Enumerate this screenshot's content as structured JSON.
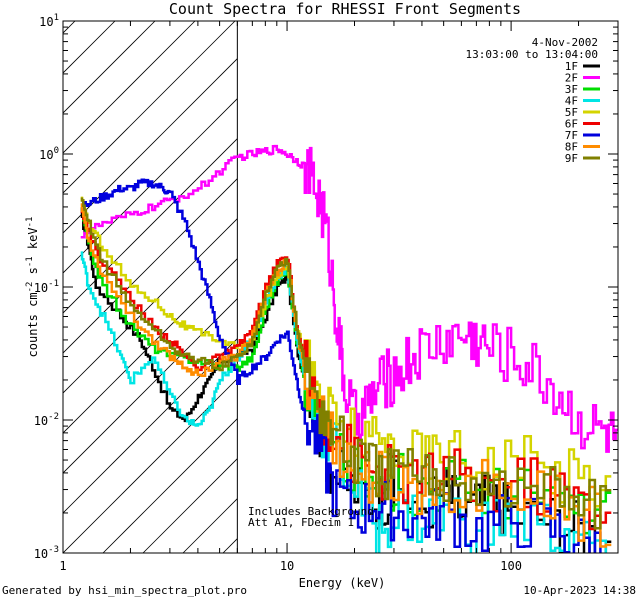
{
  "chart_data": {
    "type": "line",
    "title": "Count Spectra for RHESSI Front Segments",
    "xlabel": "Energy (keV)",
    "ylabel_parts": {
      "base": "counts cm",
      "exp1": "-2",
      "s": " s",
      "exp2": "-1",
      "kev": " keV",
      "exp3": "-1"
    },
    "xscale": "log",
    "yscale": "log",
    "xlim": [
      1,
      300
    ],
    "ylim": [
      0.001,
      10
    ],
    "x_ticks": [
      {
        "value": 1,
        "label": "1"
      },
      {
        "value": 10,
        "label": "10"
      },
      {
        "value": 100,
        "label": "100"
      }
    ],
    "y_ticks": [
      {
        "value": 0.001,
        "base": "10",
        "exp": "-3"
      },
      {
        "value": 0.01,
        "base": "10",
        "exp": "-2"
      },
      {
        "value": 0.1,
        "base": "10",
        "exp": "-1"
      },
      {
        "value": 1,
        "base": "10",
        "exp": "0"
      },
      {
        "value": 10,
        "base": "10",
        "exp": "1"
      }
    ],
    "attenuator_region_keV": [
      1,
      6
    ],
    "date_label": "4-Nov-2002",
    "time_range": "13:03:00 to 13:04:00",
    "annotation_lines": [
      "Includes Background",
      "Att A1, FDecim 1"
    ],
    "series": [
      {
        "name": "1F",
        "color": "#000000",
        "values": [
          [
            1.2,
            0.35
          ],
          [
            1.3,
            0.2
          ],
          [
            1.4,
            0.1
          ],
          [
            1.8,
            0.06
          ],
          [
            2.2,
            0.04
          ],
          [
            2.5,
            0.025
          ],
          [
            3,
            0.012
          ],
          [
            3.5,
            0.01
          ],
          [
            4,
            0.015
          ],
          [
            4.5,
            0.02
          ],
          [
            5,
            0.028
          ],
          [
            6,
            0.03
          ],
          [
            7,
            0.035
          ],
          [
            8,
            0.06
          ],
          [
            9,
            0.1
          ],
          [
            10,
            0.12
          ],
          [
            11,
            0.035
          ],
          [
            12,
            0.02
          ],
          [
            14,
            0.008
          ],
          [
            16,
            0.004
          ],
          [
            20,
            0.003
          ],
          [
            25,
            0.0025
          ],
          [
            30,
            0.003
          ],
          [
            40,
            0.0022
          ],
          [
            50,
            0.003
          ],
          [
            60,
            0.002
          ],
          [
            80,
            0.0025
          ],
          [
            100,
            0.002
          ],
          [
            150,
            0.0018
          ],
          [
            200,
            0.0015
          ],
          [
            280,
            0.0012
          ]
        ]
      },
      {
        "name": "2F",
        "color": "#ff00ff",
        "values": [
          [
            1.2,
            0.25
          ],
          [
            1.5,
            0.3
          ],
          [
            2,
            0.35
          ],
          [
            2.5,
            0.4
          ],
          [
            3,
            0.45
          ],
          [
            4,
            0.55
          ],
          [
            5,
            0.75
          ],
          [
            6,
            0.95
          ],
          [
            7,
            1.0
          ],
          [
            8,
            1.05
          ],
          [
            9,
            1.1
          ],
          [
            10,
            1.0
          ],
          [
            11,
            0.9
          ],
          [
            12,
            0.8
          ],
          [
            13,
            0.6
          ],
          [
            14,
            0.45
          ],
          [
            15,
            0.25
          ],
          [
            16,
            0.1
          ],
          [
            17,
            0.04
          ],
          [
            18,
            0.018
          ],
          [
            20,
            0.01
          ],
          [
            22,
            0.012
          ],
          [
            24,
            0.015
          ],
          [
            27,
            0.02
          ],
          [
            30,
            0.022
          ],
          [
            35,
            0.028
          ],
          [
            40,
            0.033
          ],
          [
            50,
            0.04
          ],
          [
            60,
            0.043
          ],
          [
            70,
            0.04
          ],
          [
            80,
            0.035
          ],
          [
            100,
            0.03
          ],
          [
            120,
            0.025
          ],
          [
            150,
            0.018
          ],
          [
            180,
            0.012
          ],
          [
            220,
            0.009
          ],
          [
            260,
            0.008
          ],
          [
            300,
            0.007
          ]
        ]
      },
      {
        "name": "3F",
        "color": "#00dd00",
        "values": [
          [
            1.2,
            0.4
          ],
          [
            1.3,
            0.2
          ],
          [
            1.5,
            0.1
          ],
          [
            2,
            0.05
          ],
          [
            2.5,
            0.035
          ],
          [
            3,
            0.03
          ],
          [
            4,
            0.028
          ],
          [
            5,
            0.025
          ],
          [
            6,
            0.025
          ],
          [
            7,
            0.03
          ],
          [
            8,
            0.07
          ],
          [
            9,
            0.11
          ],
          [
            10,
            0.13
          ],
          [
            11,
            0.04
          ],
          [
            12,
            0.02
          ],
          [
            14,
            0.01
          ],
          [
            16,
            0.006
          ],
          [
            20,
            0.004
          ],
          [
            25,
            0.003
          ],
          [
            30,
            0.0035
          ],
          [
            40,
            0.003
          ],
          [
            50,
            0.0035
          ],
          [
            70,
            0.003
          ],
          [
            100,
            0.003
          ],
          [
            150,
            0.0025
          ],
          [
            200,
            0.002
          ],
          [
            280,
            0.002
          ]
        ]
      },
      {
        "name": "4F",
        "color": "#00e5e5",
        "values": [
          [
            1.2,
            0.18
          ],
          [
            1.3,
            0.1
          ],
          [
            1.5,
            0.06
          ],
          [
            1.8,
            0.03
          ],
          [
            2,
            0.02
          ],
          [
            2.5,
            0.03
          ],
          [
            3,
            0.015
          ],
          [
            3.5,
            0.01
          ],
          [
            4,
            0.009
          ],
          [
            4.5,
            0.012
          ],
          [
            5,
            0.02
          ],
          [
            6,
            0.03
          ],
          [
            7,
            0.04
          ],
          [
            8,
            0.08
          ],
          [
            9,
            0.12
          ],
          [
            10,
            0.14
          ],
          [
            11,
            0.04
          ],
          [
            12,
            0.02
          ],
          [
            14,
            0.009
          ],
          [
            16,
            0.006
          ],
          [
            20,
            0.003
          ],
          [
            25,
            0.0015
          ],
          [
            30,
            0.002
          ],
          [
            40,
            0.0018
          ],
          [
            50,
            0.002
          ],
          [
            70,
            0.0015
          ],
          [
            100,
            0.0018
          ],
          [
            150,
            0.0015
          ],
          [
            200,
            0.0012
          ],
          [
            280,
            0.001
          ]
        ]
      },
      {
        "name": "5F",
        "color": "#d4d400",
        "values": [
          [
            1.2,
            0.45
          ],
          [
            1.3,
            0.3
          ],
          [
            1.5,
            0.2
          ],
          [
            2,
            0.1
          ],
          [
            2.5,
            0.08
          ],
          [
            3,
            0.06
          ],
          [
            3.5,
            0.05
          ],
          [
            4,
            0.045
          ],
          [
            5,
            0.04
          ],
          [
            6,
            0.035
          ],
          [
            7,
            0.04
          ],
          [
            8,
            0.08
          ],
          [
            9,
            0.12
          ],
          [
            10,
            0.15
          ],
          [
            11,
            0.05
          ],
          [
            12,
            0.03
          ],
          [
            14,
            0.015
          ],
          [
            16,
            0.01
          ],
          [
            20,
            0.008
          ],
          [
            25,
            0.006
          ],
          [
            30,
            0.007
          ],
          [
            40,
            0.005
          ],
          [
            50,
            0.006
          ],
          [
            70,
            0.005
          ],
          [
            100,
            0.005
          ],
          [
            150,
            0.004
          ],
          [
            200,
            0.004
          ],
          [
            280,
            0.003
          ]
        ]
      },
      {
        "name": "6F",
        "color": "#ee0000",
        "values": [
          [
            1.2,
            0.4
          ],
          [
            1.3,
            0.25
          ],
          [
            1.5,
            0.15
          ],
          [
            2,
            0.08
          ],
          [
            2.5,
            0.05
          ],
          [
            3,
            0.04
          ],
          [
            3.5,
            0.03
          ],
          [
            4,
            0.025
          ],
          [
            5,
            0.03
          ],
          [
            6,
            0.035
          ],
          [
            7,
            0.05
          ],
          [
            8,
            0.1
          ],
          [
            9,
            0.15
          ],
          [
            10,
            0.17
          ],
          [
            11,
            0.05
          ],
          [
            12,
            0.025
          ],
          [
            14,
            0.012
          ],
          [
            16,
            0.008
          ],
          [
            20,
            0.005
          ],
          [
            25,
            0.004
          ],
          [
            30,
            0.004
          ],
          [
            40,
            0.0035
          ],
          [
            50,
            0.004
          ],
          [
            70,
            0.003
          ],
          [
            100,
            0.0035
          ],
          [
            150,
            0.003
          ],
          [
            200,
            0.0025
          ],
          [
            280,
            0.002
          ]
        ]
      },
      {
        "name": "7F",
        "color": "#0000dd",
        "values": [
          [
            1.2,
            0.4
          ],
          [
            1.4,
            0.45
          ],
          [
            1.6,
            0.5
          ],
          [
            1.8,
            0.55
          ],
          [
            2,
            0.55
          ],
          [
            2.2,
            0.6
          ],
          [
            2.5,
            0.6
          ],
          [
            2.8,
            0.55
          ],
          [
            3,
            0.5
          ],
          [
            3.5,
            0.3
          ],
          [
            4,
            0.15
          ],
          [
            4.5,
            0.08
          ],
          [
            5,
            0.04
          ],
          [
            6,
            0.02
          ],
          [
            7,
            0.025
          ],
          [
            8,
            0.03
          ],
          [
            9,
            0.04
          ],
          [
            10,
            0.045
          ],
          [
            11,
            0.02
          ],
          [
            12,
            0.01
          ],
          [
            14,
            0.006
          ],
          [
            16,
            0.003
          ],
          [
            20,
            0.002
          ],
          [
            25,
            0.0025
          ],
          [
            30,
            0.002
          ],
          [
            40,
            0.0018
          ],
          [
            50,
            0.002
          ],
          [
            70,
            0.0015
          ],
          [
            100,
            0.0018
          ],
          [
            150,
            0.0015
          ],
          [
            200,
            0.0012
          ],
          [
            280,
            0.001
          ]
        ]
      },
      {
        "name": "8F",
        "color": "#ff8c00",
        "values": [
          [
            1.2,
            0.42
          ],
          [
            1.3,
            0.22
          ],
          [
            1.5,
            0.12
          ],
          [
            2,
            0.06
          ],
          [
            2.5,
            0.04
          ],
          [
            3,
            0.03
          ],
          [
            3.5,
            0.025
          ],
          [
            4,
            0.022
          ],
          [
            5,
            0.028
          ],
          [
            6,
            0.03
          ],
          [
            7,
            0.045
          ],
          [
            8,
            0.09
          ],
          [
            9,
            0.13
          ],
          [
            10,
            0.16
          ],
          [
            11,
            0.045
          ],
          [
            12,
            0.022
          ],
          [
            14,
            0.011
          ],
          [
            16,
            0.007
          ],
          [
            20,
            0.004
          ],
          [
            25,
            0.0035
          ],
          [
            30,
            0.0035
          ],
          [
            40,
            0.003
          ],
          [
            50,
            0.0035
          ],
          [
            70,
            0.003
          ],
          [
            100,
            0.003
          ],
          [
            150,
            0.0025
          ],
          [
            200,
            0.002
          ],
          [
            280,
            0.0018
          ]
        ]
      },
      {
        "name": "9F",
        "color": "#808000",
        "values": [
          [
            1.2,
            0.45
          ],
          [
            1.3,
            0.3
          ],
          [
            1.5,
            0.15
          ],
          [
            2,
            0.07
          ],
          [
            2.5,
            0.05
          ],
          [
            3,
            0.035
          ],
          [
            3.5,
            0.03
          ],
          [
            4,
            0.028
          ],
          [
            5,
            0.025
          ],
          [
            6,
            0.03
          ],
          [
            7,
            0.04
          ],
          [
            8,
            0.09
          ],
          [
            9,
            0.14
          ],
          [
            10,
            0.16
          ],
          [
            11,
            0.05
          ],
          [
            12,
            0.025
          ],
          [
            14,
            0.012
          ],
          [
            16,
            0.008
          ],
          [
            20,
            0.005
          ],
          [
            25,
            0.004
          ],
          [
            30,
            0.004
          ],
          [
            40,
            0.0035
          ],
          [
            50,
            0.004
          ],
          [
            70,
            0.0035
          ],
          [
            100,
            0.003
          ],
          [
            150,
            0.003
          ],
          [
            200,
            0.0025
          ],
          [
            280,
            0.002
          ]
        ]
      }
    ]
  },
  "footer": {
    "generated_by": "Generated by hsi_min_spectra_plot.pro",
    "timestamp": "10-Apr-2023 14:38"
  }
}
